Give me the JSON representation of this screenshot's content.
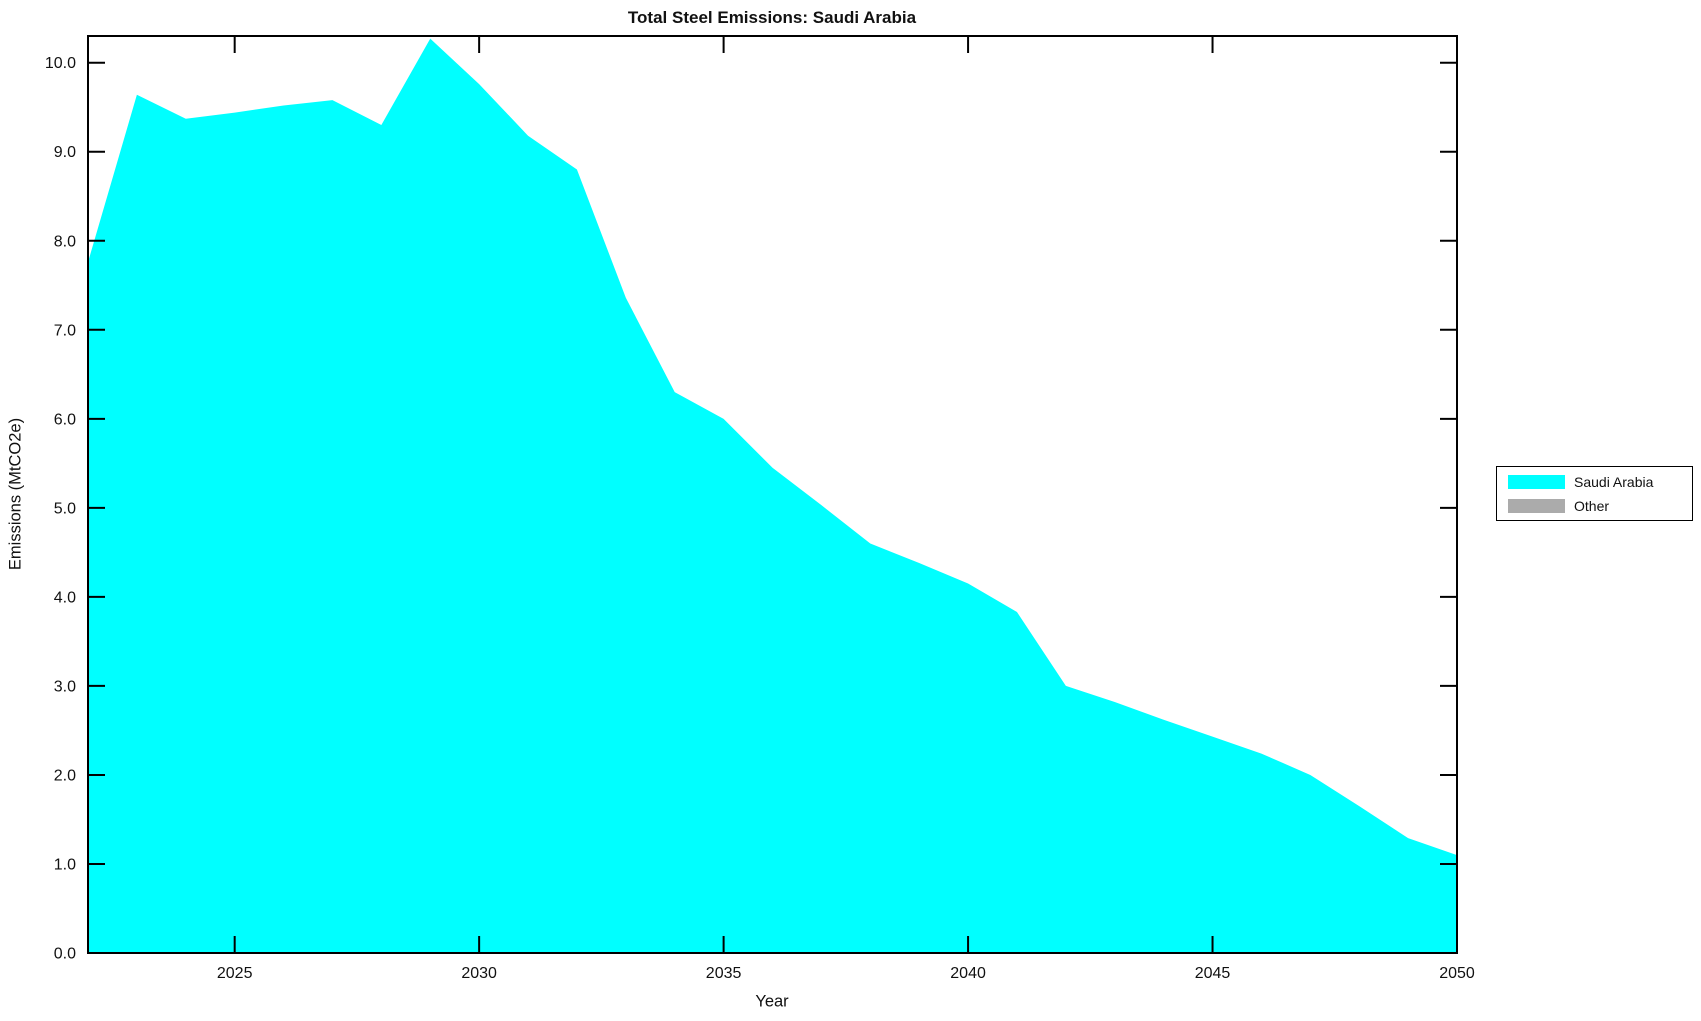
{
  "figure": {
    "background": "#FFFFFF",
    "text_color": "#111111",
    "spine_color": "#000000"
  },
  "chart_data": {
    "type": "area",
    "title": "Total Steel Emissions: Saudi Arabia",
    "xlabel": "Year",
    "ylabel": "Emissions (MtCO2e)",
    "x": [
      2022,
      2023,
      2024,
      2025,
      2026,
      2027,
      2028,
      2029,
      2030,
      2031,
      2032,
      2033,
      2034,
      2035,
      2036,
      2037,
      2038,
      2039,
      2040,
      2041,
      2042,
      2043,
      2044,
      2045,
      2046,
      2047,
      2048,
      2049,
      2050
    ],
    "series": [
      {
        "name": "Saudi Arabia",
        "color": "#00FFFF",
        "values": [
          7.76,
          9.64,
          9.37,
          9.44,
          9.52,
          9.58,
          9.3,
          10.27,
          9.76,
          9.18,
          8.8,
          7.36,
          6.3,
          6.0,
          5.45,
          5.03,
          4.6,
          4.38,
          4.15,
          3.83,
          3.0,
          2.82,
          2.62,
          2.43,
          2.24,
          2.0,
          1.65,
          1.29,
          1.1
        ]
      },
      {
        "name": "Other",
        "color": "#ABABAB",
        "values": null
      }
    ],
    "xlim": [
      2022,
      2050
    ],
    "ylim": [
      0,
      10.3
    ],
    "xticks": {
      "values": [
        2025,
        2030,
        2035,
        2040,
        2045,
        2050
      ],
      "labels": [
        "2025",
        "2030",
        "2035",
        "2040",
        "2045",
        "2050"
      ]
    },
    "yticks": {
      "values": [
        0,
        1,
        2,
        3,
        4,
        5,
        6,
        7,
        8,
        9,
        10
      ],
      "labels": [
        "0.0",
        "1.0",
        "2.0",
        "3.0",
        "4.0",
        "5.0",
        "6.0",
        "7.0",
        "8.0",
        "9.0",
        "10.0"
      ]
    },
    "grid": false,
    "tick_direction": "in",
    "legend_position": "outside-right"
  }
}
